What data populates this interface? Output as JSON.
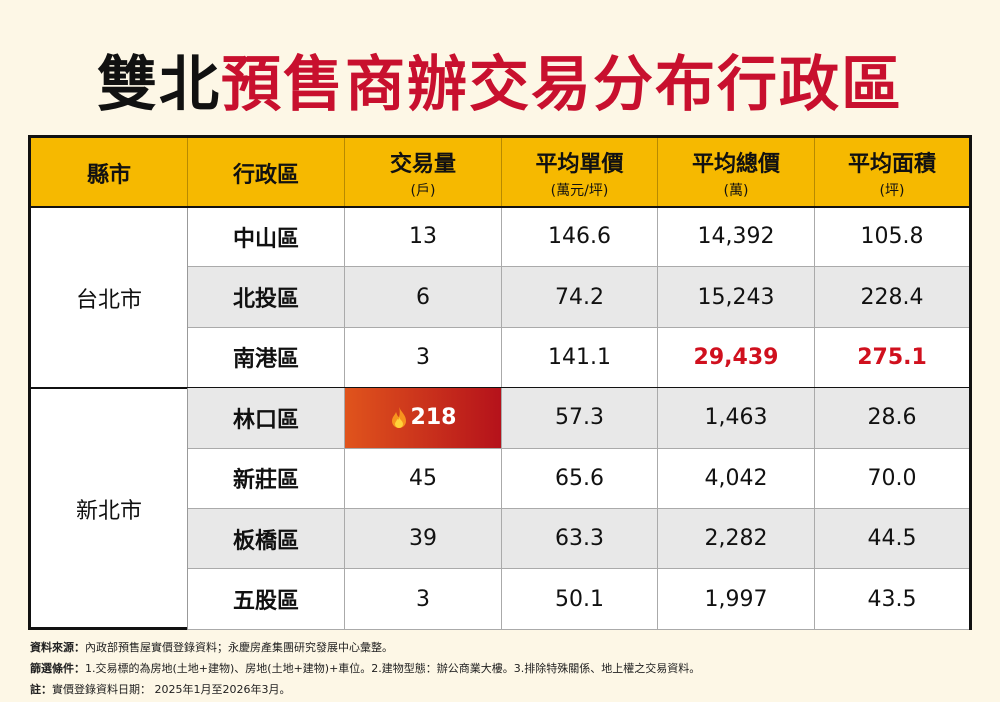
{
  "title": {
    "part1": "雙北",
    "part2": "預售商辦交易分布行政區"
  },
  "table": {
    "headers": [
      {
        "label": "縣市"
      },
      {
        "label": "行政區"
      },
      {
        "label": "交易量",
        "unit": "(戶)"
      },
      {
        "label": "平均單價",
        "unit": "(萬元/坪)"
      },
      {
        "label": "平均總價",
        "unit": "(萬)"
      },
      {
        "label": "平均面積",
        "unit": "(坪)"
      }
    ],
    "groups": [
      {
        "city": "台北市",
        "rows": [
          [
            "中山區",
            "13",
            "146.6",
            "14,392",
            "105.8"
          ],
          [
            "北投區",
            "6",
            "74.2",
            "15,243",
            "228.4"
          ],
          [
            "南港區",
            "3",
            "141.1",
            "29,439",
            "275.1"
          ]
        ]
      },
      {
        "city": "新北市",
        "rows": [
          [
            "林口區",
            "218",
            "57.3",
            "1,463",
            "28.6"
          ],
          [
            "新莊區",
            "45",
            "65.6",
            "4,042",
            "70.0"
          ],
          [
            "板橋區",
            "39",
            "63.3",
            "2,282",
            "44.5"
          ],
          [
            "五股區",
            "3",
            "50.1",
            "1,997",
            "43.5"
          ]
        ]
      }
    ]
  },
  "notes": [
    {
      "label": "資料來源：",
      "text": "內政部預售屋實價登錄資料；永慶房產集團研究發展中心彙整。"
    },
    {
      "label": "篩選條件：",
      "text": "1.交易標的為房地(土地+建物)、房地(土地+建物)+車位。2.建物型態：辦公商業大樓。3.排除特殊關係、地上權之交易資料。"
    },
    {
      "label": "註：",
      "text": "實價登錄資料日期： 2025年1月至2026年3月。"
    }
  ]
}
